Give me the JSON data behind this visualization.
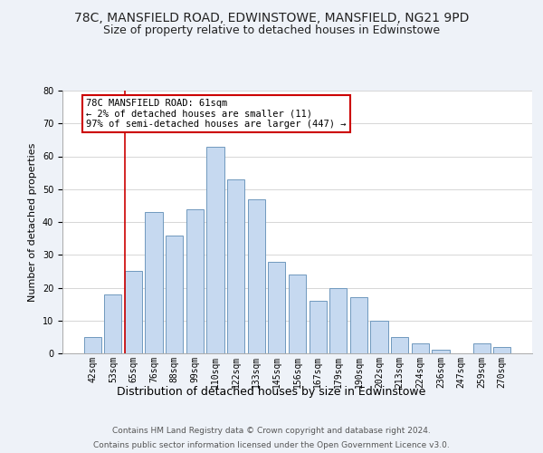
{
  "title": "78C, MANSFIELD ROAD, EDWINSTOWE, MANSFIELD, NG21 9PD",
  "subtitle": "Size of property relative to detached houses in Edwinstowe",
  "xlabel": "Distribution of detached houses by size in Edwinstowe",
  "ylabel": "Number of detached properties",
  "footer_line1": "Contains HM Land Registry data © Crown copyright and database right 2024.",
  "footer_line2": "Contains public sector information licensed under the Open Government Licence v3.0.",
  "bar_labels": [
    "42sqm",
    "53sqm",
    "65sqm",
    "76sqm",
    "88sqm",
    "99sqm",
    "110sqm",
    "122sqm",
    "133sqm",
    "145sqm",
    "156sqm",
    "167sqm",
    "179sqm",
    "190sqm",
    "202sqm",
    "213sqm",
    "224sqm",
    "236sqm",
    "247sqm",
    "259sqm",
    "270sqm"
  ],
  "bar_values": [
    5,
    18,
    25,
    43,
    36,
    44,
    63,
    53,
    47,
    28,
    24,
    16,
    20,
    17,
    10,
    5,
    3,
    1,
    0,
    3,
    2
  ],
  "bar_color": "#c6d9f0",
  "bar_edge_color": "#7099be",
  "grid_color": "#d0d0d0",
  "background_color": "#eef2f8",
  "plot_bg_color": "#ffffff",
  "ylim": [
    0,
    80
  ],
  "yticks": [
    0,
    10,
    20,
    30,
    40,
    50,
    60,
    70,
    80
  ],
  "annotation_box_text_line1": "78C MANSFIELD ROAD: 61sqm",
  "annotation_box_text_line2": "← 2% of detached houses are smaller (11)",
  "annotation_box_text_line3": "97% of semi-detached houses are larger (447) →",
  "annotation_box_edge_color": "#cc0000",
  "annotation_line_color": "#cc0000",
  "title_fontsize": 10,
  "subtitle_fontsize": 9,
  "xlabel_fontsize": 9,
  "ylabel_fontsize": 8,
  "tick_fontsize": 7,
  "annotation_fontsize": 7.5,
  "footer_fontsize": 6.5
}
